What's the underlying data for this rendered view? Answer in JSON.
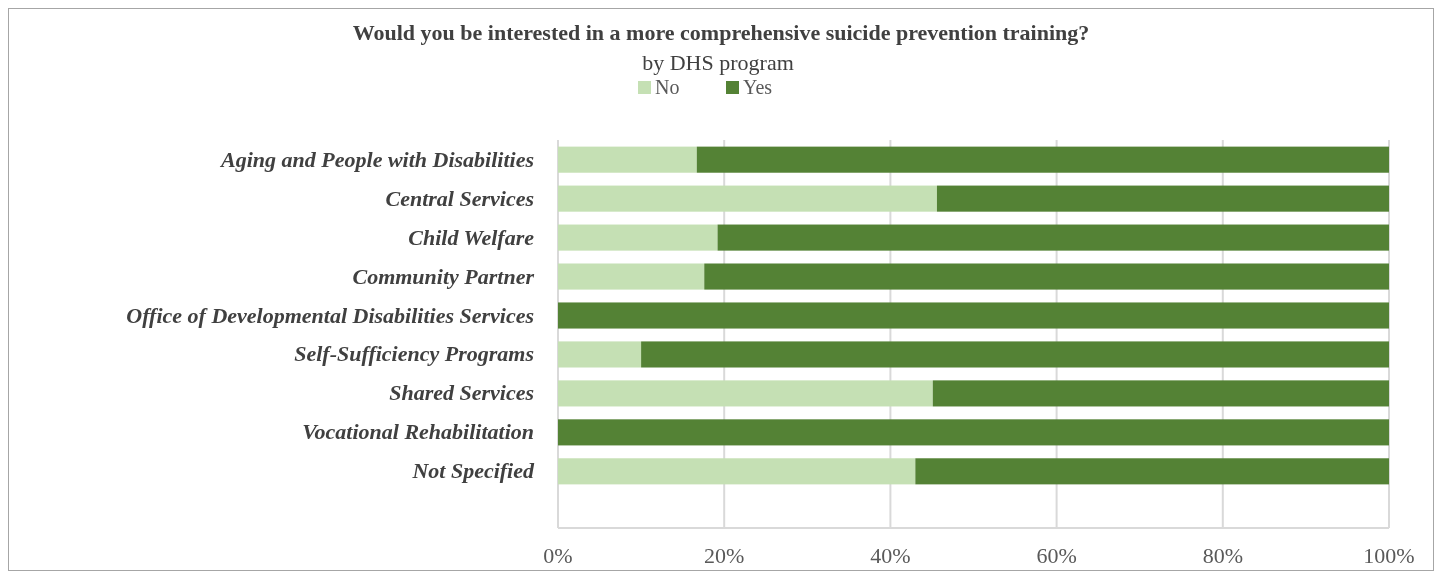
{
  "chart_data": {
    "type": "bar",
    "orientation": "horizontal",
    "stacked": true,
    "title": "Would you be interested in a more comprehensive suicide prevention training?",
    "subtitle": "by DHS program",
    "categories": [
      "Aging and People with Disabilities",
      "Central Services",
      "Child Welfare",
      "Community Partner",
      "Office of Developmental Disabilities Services",
      "Self-Sufficiency Programs",
      "Shared Services",
      "Vocational Rehabilitation",
      "Not Specified"
    ],
    "series": [
      {
        "name": "No",
        "color": "#c5e0b4",
        "values": [
          16.7,
          45.6,
          19.2,
          17.6,
          0,
          10.0,
          45.1,
          0,
          43.0
        ]
      },
      {
        "name": "Yes",
        "color": "#548235",
        "values": [
          83.3,
          54.4,
          80.8,
          82.4,
          100,
          90.0,
          54.9,
          100,
          57.0
        ]
      }
    ],
    "xlim": [
      0,
      100
    ],
    "xticks": [
      {
        "value": 0,
        "label": "0%"
      },
      {
        "value": 20,
        "label": "20%"
      },
      {
        "value": 40,
        "label": "40%"
      },
      {
        "value": 60,
        "label": "60%"
      },
      {
        "value": 80,
        "label": "80%"
      },
      {
        "value": 100,
        "label": "100%"
      }
    ],
    "grid": "x",
    "legend": "top"
  }
}
